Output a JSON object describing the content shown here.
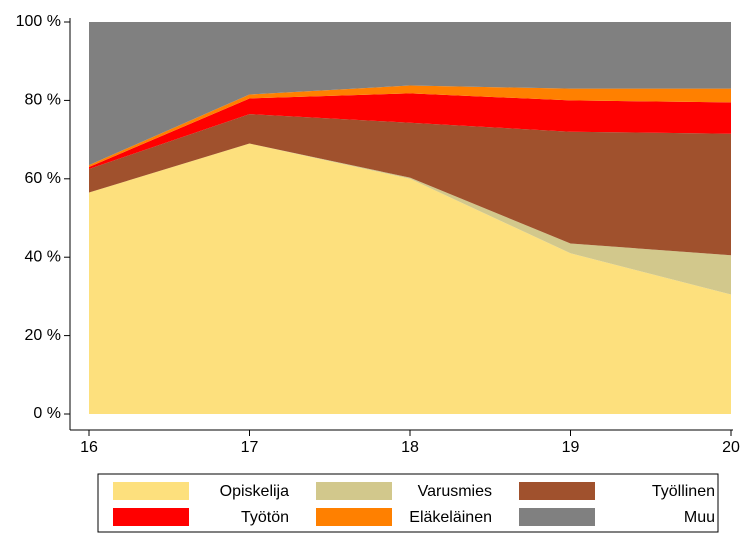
{
  "chart_data": {
    "type": "stacked_area",
    "x": [
      16,
      17,
      18,
      19,
      20
    ],
    "series": [
      {
        "name": "Opiskelija",
        "color": "#fde07d",
        "values": [
          56.5,
          69,
          60,
          41,
          30.5
        ]
      },
      {
        "name": "Varusmies",
        "color": "#d2c88c",
        "values": [
          0,
          0,
          0.3,
          2.5,
          10
        ]
      },
      {
        "name": "Työllinen",
        "color": "#a0512d",
        "values": [
          6,
          7.5,
          14,
          28.5,
          31
        ]
      },
      {
        "name": "Työtön",
        "color": "#ff0000",
        "values": [
          0.5,
          4,
          7.5,
          8,
          8
        ]
      },
      {
        "name": "Eläkeläinen",
        "color": "#ff8000",
        "values": [
          0.5,
          1,
          2,
          3,
          3.5
        ]
      },
      {
        "name": "Muu",
        "color": "#808080",
        "values": [
          36.5,
          18.5,
          16.2,
          17,
          17
        ]
      }
    ],
    "xlim": [
      16,
      20
    ],
    "xticks": [
      16,
      17,
      18,
      19,
      20
    ],
    "ylim": [
      0,
      100
    ],
    "yticks": [
      {
        "value": 0,
        "label": "0 %"
      },
      {
        "value": 20,
        "label": "20 %"
      },
      {
        "value": 40,
        "label": "40 %"
      },
      {
        "value": 60,
        "label": "60 %"
      },
      {
        "value": 80,
        "label": "80 %"
      },
      {
        "value": 100,
        "label": "100 %"
      }
    ],
    "legend": "bottom"
  }
}
